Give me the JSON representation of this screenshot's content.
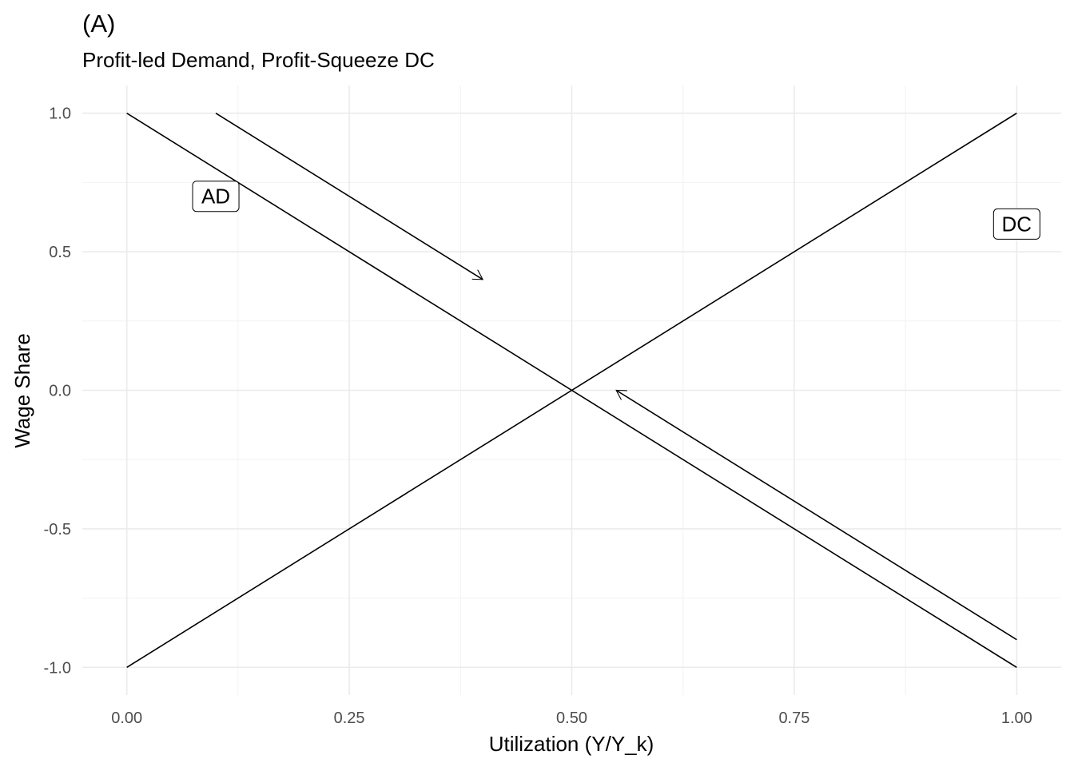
{
  "chart_data": {
    "type": "line",
    "title": "(A)",
    "subtitle": "Profit-led Demand, Profit-Squeeze DC",
    "xlabel": "Utilization (Y/Y_k)",
    "ylabel": "Wage Share",
    "xlim": [
      -0.05,
      1.05
    ],
    "ylim": [
      -1.1,
      1.1
    ],
    "grid": true,
    "x_ticks": [
      0,
      0.25,
      0.5,
      0.75,
      1
    ],
    "x_tick_labels": [
      "0.00",
      "0.25",
      "0.50",
      "0.75",
      "1.00"
    ],
    "y_ticks": [
      -1,
      -0.5,
      0,
      0.5,
      1
    ],
    "y_tick_labels": [
      "-1.0",
      "-0.5",
      "0.0",
      "0.5",
      "1.0"
    ],
    "series": [
      {
        "name": "AD",
        "x": [
          0,
          1
        ],
        "y": [
          1,
          -1
        ],
        "color": "#000000"
      },
      {
        "name": "DC",
        "x": [
          0,
          1
        ],
        "y": [
          -1,
          1
        ],
        "color": "#000000"
      }
    ],
    "labels": [
      {
        "text": "AD",
        "x": 0.1,
        "y": 0.7
      },
      {
        "text": "DC",
        "x": 1.0,
        "y": 0.6
      }
    ],
    "arrows": [
      {
        "from": [
          0.1,
          1.0
        ],
        "to": [
          0.4,
          0.4
        ]
      },
      {
        "from": [
          1.0,
          -0.9
        ],
        "to": [
          0.55,
          0.0
        ]
      }
    ]
  }
}
